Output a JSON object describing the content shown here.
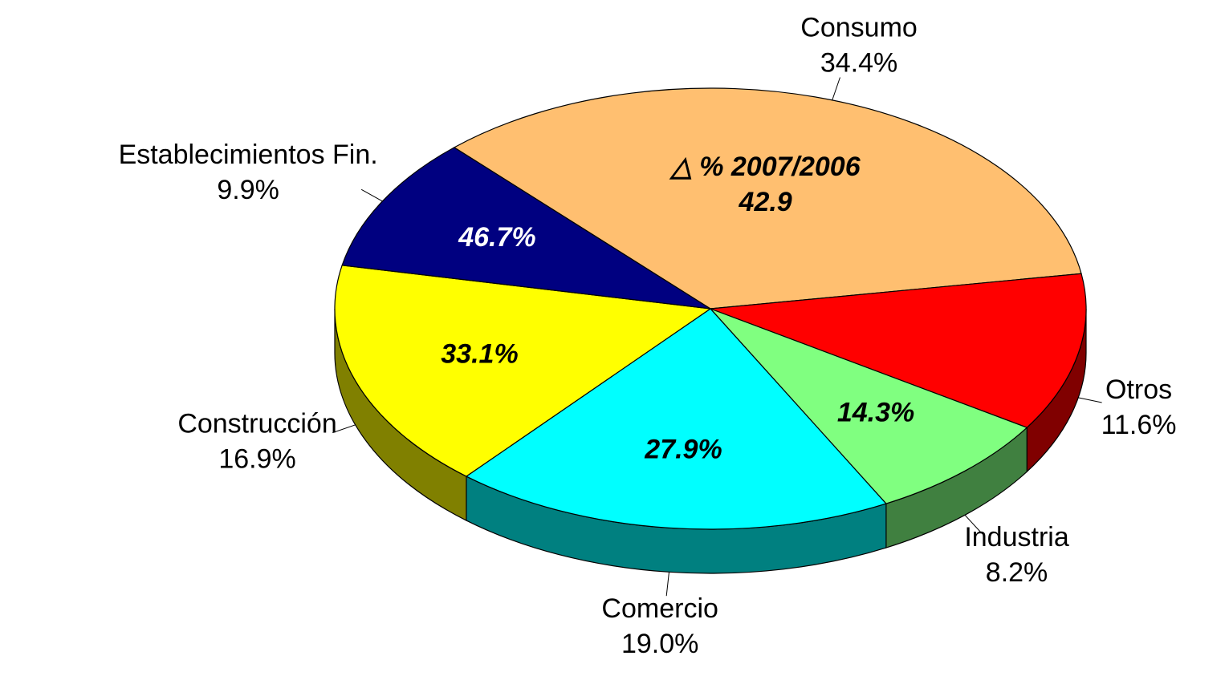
{
  "chart_data": {
    "type": "pie3d",
    "categories": [
      "Consumo",
      "Otros",
      "Industria",
      "Comercio",
      "Construcción",
      "Establecimientos Fin."
    ],
    "values": [
      34.4,
      11.6,
      8.2,
      19.0,
      16.9,
      9.9
    ],
    "value_labels": [
      "34.4%",
      "11.6%",
      "8.2%",
      "19.0%",
      "16.9%",
      "9.9%"
    ],
    "colors": [
      "#ffbf70",
      "#ff0000",
      "#80ff80",
      "#00ffff",
      "#ffff00",
      "#000080"
    ],
    "side_colors": [
      "#b08050",
      "#800000",
      "#408040",
      "#008080",
      "#808000",
      "#000040"
    ],
    "inner_label_colors": [
      "#000000",
      "#000000",
      "#000000",
      "#000000",
      "#000000",
      "#ffffff"
    ],
    "annotation": "△ % 2007/2006",
    "inner_values": [
      42.9,
      null,
      14.3,
      27.9,
      33.1,
      46.7
    ],
    "inner_value_labels": [
      "42.9",
      null,
      "14.3%",
      "27.9%",
      "33.1%",
      "46.7%"
    ]
  }
}
